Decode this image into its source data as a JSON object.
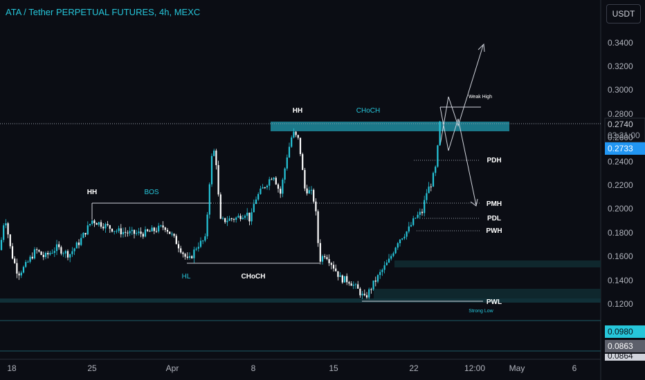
{
  "header": {
    "title": "ATA / Tether PERPETUAL FUTURES, 4h, MEXC"
  },
  "currency_button": {
    "label": "USDT"
  },
  "price_axis": {
    "ticks": [
      "0.3400",
      "0.3200",
      "0.3000",
      "0.2800",
      "0.2600",
      "0.2400",
      "0.2200",
      "0.2000",
      "0.1800",
      "0.1600",
      "0.1400",
      "0.1200"
    ]
  },
  "time_axis": {
    "ticks": [
      "18",
      "25",
      "Apr",
      "8",
      "15",
      "22",
      "12:00",
      "May",
      "6"
    ]
  },
  "price_tags": {
    "current": "0.2740",
    "countdown": "03:31:00",
    "last": "0.2733",
    "level_a": "0.0980",
    "level_b": "0.0863",
    "level_c": "0.0864"
  },
  "annotations": {
    "hh_left": "HH",
    "bos": "BOS",
    "hl": "HL",
    "choch_low": "CHoCH",
    "hh_top": "HH",
    "choch_top": "CHoCH",
    "weak_high": "Weak High",
    "pdh": "PDH",
    "pmh": "PMH",
    "pdl": "PDL",
    "pwh": "PWH",
    "pwl": "PWL",
    "strong_low": "Strong Low"
  },
  "colors": {
    "up": "#26c6da",
    "down": "#ffffff",
    "zone": "#1e8c9e",
    "background": "#0b0d14"
  },
  "chart_data": {
    "type": "candlestick",
    "symbol": "ATA/USDT",
    "timeframe": "4h",
    "ylim": [
      0.095,
      0.355
    ],
    "path": [
      [
        0,
        0.166
      ],
      [
        7,
        0.196
      ],
      [
        16,
        0.164
      ],
      [
        26,
        0.146
      ],
      [
        36,
        0.152
      ],
      [
        52,
        0.166
      ],
      [
        64,
        0.16
      ],
      [
        82,
        0.168
      ],
      [
        100,
        0.162
      ],
      [
        115,
        0.173
      ],
      [
        133,
        0.191
      ],
      [
        150,
        0.187
      ],
      [
        170,
        0.182
      ],
      [
        190,
        0.18
      ],
      [
        208,
        0.18
      ],
      [
        225,
        0.183
      ],
      [
        238,
        0.186
      ],
      [
        250,
        0.177
      ],
      [
        262,
        0.166
      ],
      [
        272,
        0.156
      ],
      [
        285,
        0.17
      ],
      [
        297,
        0.175
      ],
      [
        305,
        0.242
      ],
      [
        311,
        0.252
      ],
      [
        318,
        0.19
      ],
      [
        332,
        0.192
      ],
      [
        342,
        0.193
      ],
      [
        356,
        0.198
      ],
      [
        362,
        0.19
      ],
      [
        368,
        0.208
      ],
      [
        380,
        0.218
      ],
      [
        395,
        0.23
      ],
      [
        405,
        0.213
      ],
      [
        415,
        0.246
      ],
      [
        423,
        0.265
      ],
      [
        432,
        0.258
      ],
      [
        440,
        0.218
      ],
      [
        452,
        0.213
      ],
      [
        458,
        0.19
      ],
      [
        461,
        0.157
      ],
      [
        470,
        0.163
      ],
      [
        480,
        0.154
      ],
      [
        492,
        0.142
      ],
      [
        505,
        0.14
      ],
      [
        518,
        0.132
      ],
      [
        527,
        0.125
      ],
      [
        540,
        0.138
      ],
      [
        550,
        0.147
      ],
      [
        562,
        0.157
      ],
      [
        575,
        0.174
      ],
      [
        590,
        0.183
      ],
      [
        600,
        0.193
      ],
      [
        610,
        0.198
      ],
      [
        616,
        0.214
      ],
      [
        623,
        0.222
      ],
      [
        630,
        0.236
      ],
      [
        636,
        0.275
      ]
    ]
  }
}
